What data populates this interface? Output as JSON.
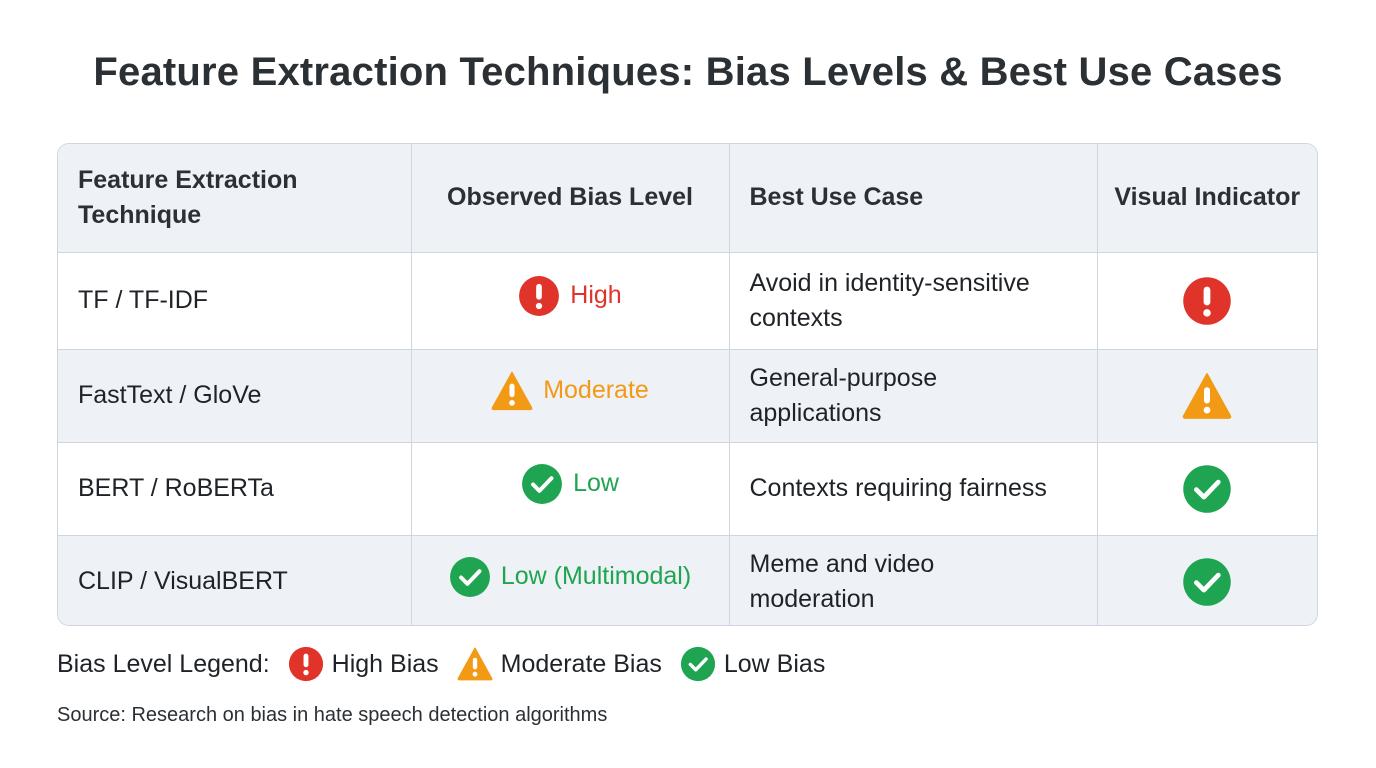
{
  "title": "Feature Extraction Techniques: Bias Levels & Best Use Cases",
  "colors": {
    "high": "#e0342b",
    "moderate": "#f29a16",
    "low": "#1fa451"
  },
  "table": {
    "headers": [
      "Feature Extraction Technique",
      "Observed Bias Level",
      "Best Use Case",
      "Visual Indicator"
    ],
    "rows": [
      {
        "technique": "TF / TF-IDF",
        "bias": "High",
        "bias_level": "high",
        "use_case": "Avoid in identity-sensitive contexts",
        "indicator_icon": "exclamation-circle-icon"
      },
      {
        "technique": "FastText / GloVe",
        "bias": "Moderate",
        "bias_level": "moderate",
        "use_case": "General-purpose applications",
        "indicator_icon": "warning-triangle-icon"
      },
      {
        "technique": "BERT / RoBERTa",
        "bias": "Low",
        "bias_level": "low",
        "use_case": "Contexts requiring fairness",
        "indicator_icon": "check-circle-icon"
      },
      {
        "technique": "CLIP / VisualBERT",
        "bias": "Low (Multimodal)",
        "bias_level": "low",
        "use_case": "Meme and video moderation",
        "indicator_icon": "check-circle-icon"
      }
    ]
  },
  "legend": {
    "label": "Bias Level Legend:",
    "items": [
      {
        "label": "High Bias",
        "level": "high",
        "icon": "exclamation-circle-icon"
      },
      {
        "label": "Moderate Bias",
        "level": "moderate",
        "icon": "warning-triangle-icon"
      },
      {
        "label": "Low Bias",
        "level": "low",
        "icon": "check-circle-icon"
      }
    ]
  },
  "source": "Source: Research on bias in hate speech detection algorithms"
}
